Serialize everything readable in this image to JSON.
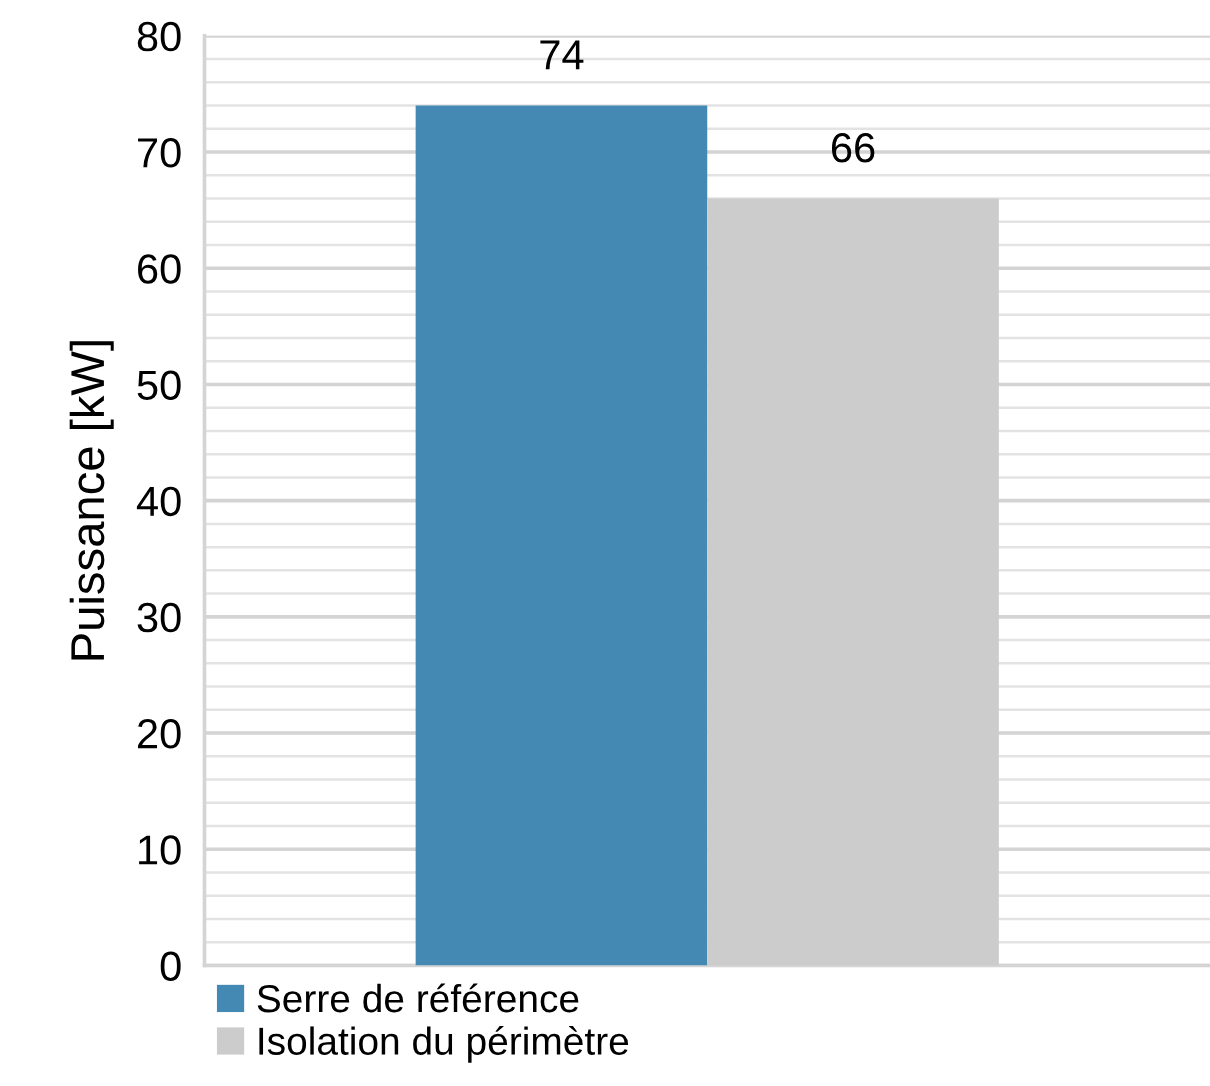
{
  "chart_data": {
    "type": "bar",
    "ylabel": "Puissance [kW]",
    "categories": [
      null
    ],
    "series": [
      {
        "name": "Serre de référence",
        "color": "#4389b3",
        "values": [
          74
        ]
      },
      {
        "name": "Isolation du périmètre",
        "color": "#cccccc",
        "values": [
          66
        ]
      }
    ],
    "ylim": [
      0,
      80
    ],
    "yticks": [
      0,
      {
        "value": 2,
        "label": null
      },
      {
        "value": 4,
        "label": null
      },
      {
        "value": 6,
        "label": null
      },
      {
        "value": 8,
        "label": null
      },
      10,
      {
        "value": 12,
        "label": null
      },
      {
        "value": 14,
        "label": null
      },
      {
        "value": 16,
        "label": null
      },
      {
        "value": 18,
        "label": null
      },
      20,
      {
        "value": 22,
        "label": null
      },
      {
        "value": 24,
        "label": null
      },
      {
        "value": 26,
        "label": null
      },
      {
        "value": 28,
        "label": null
      },
      30,
      {
        "value": 32,
        "label": null
      },
      {
        "value": 34,
        "label": null
      },
      {
        "value": 36,
        "label": null
      },
      {
        "value": 38,
        "label": null
      },
      40,
      {
        "value": 42,
        "label": null
      },
      {
        "value": 44,
        "label": null
      },
      {
        "value": 46,
        "label": null
      },
      {
        "value": 48,
        "label": null
      },
      50,
      {
        "value": 52,
        "label": null
      },
      {
        "value": 54,
        "label": null
      },
      {
        "value": 56,
        "label": null
      },
      {
        "value": 58,
        "label": null
      },
      60,
      {
        "value": 62,
        "label": null
      },
      {
        "value": 64,
        "label": null
      },
      {
        "value": 66,
        "label": null
      },
      {
        "value": 68,
        "label": null
      },
      70,
      {
        "value": 72,
        "label": null
      },
      {
        "value": 74,
        "label": null
      },
      {
        "value": 76,
        "label": null
      },
      {
        "value": 78,
        "label": null
      },
      80
    ],
    "grid": "y",
    "data_labels": true,
    "legend": "bottom left"
  }
}
